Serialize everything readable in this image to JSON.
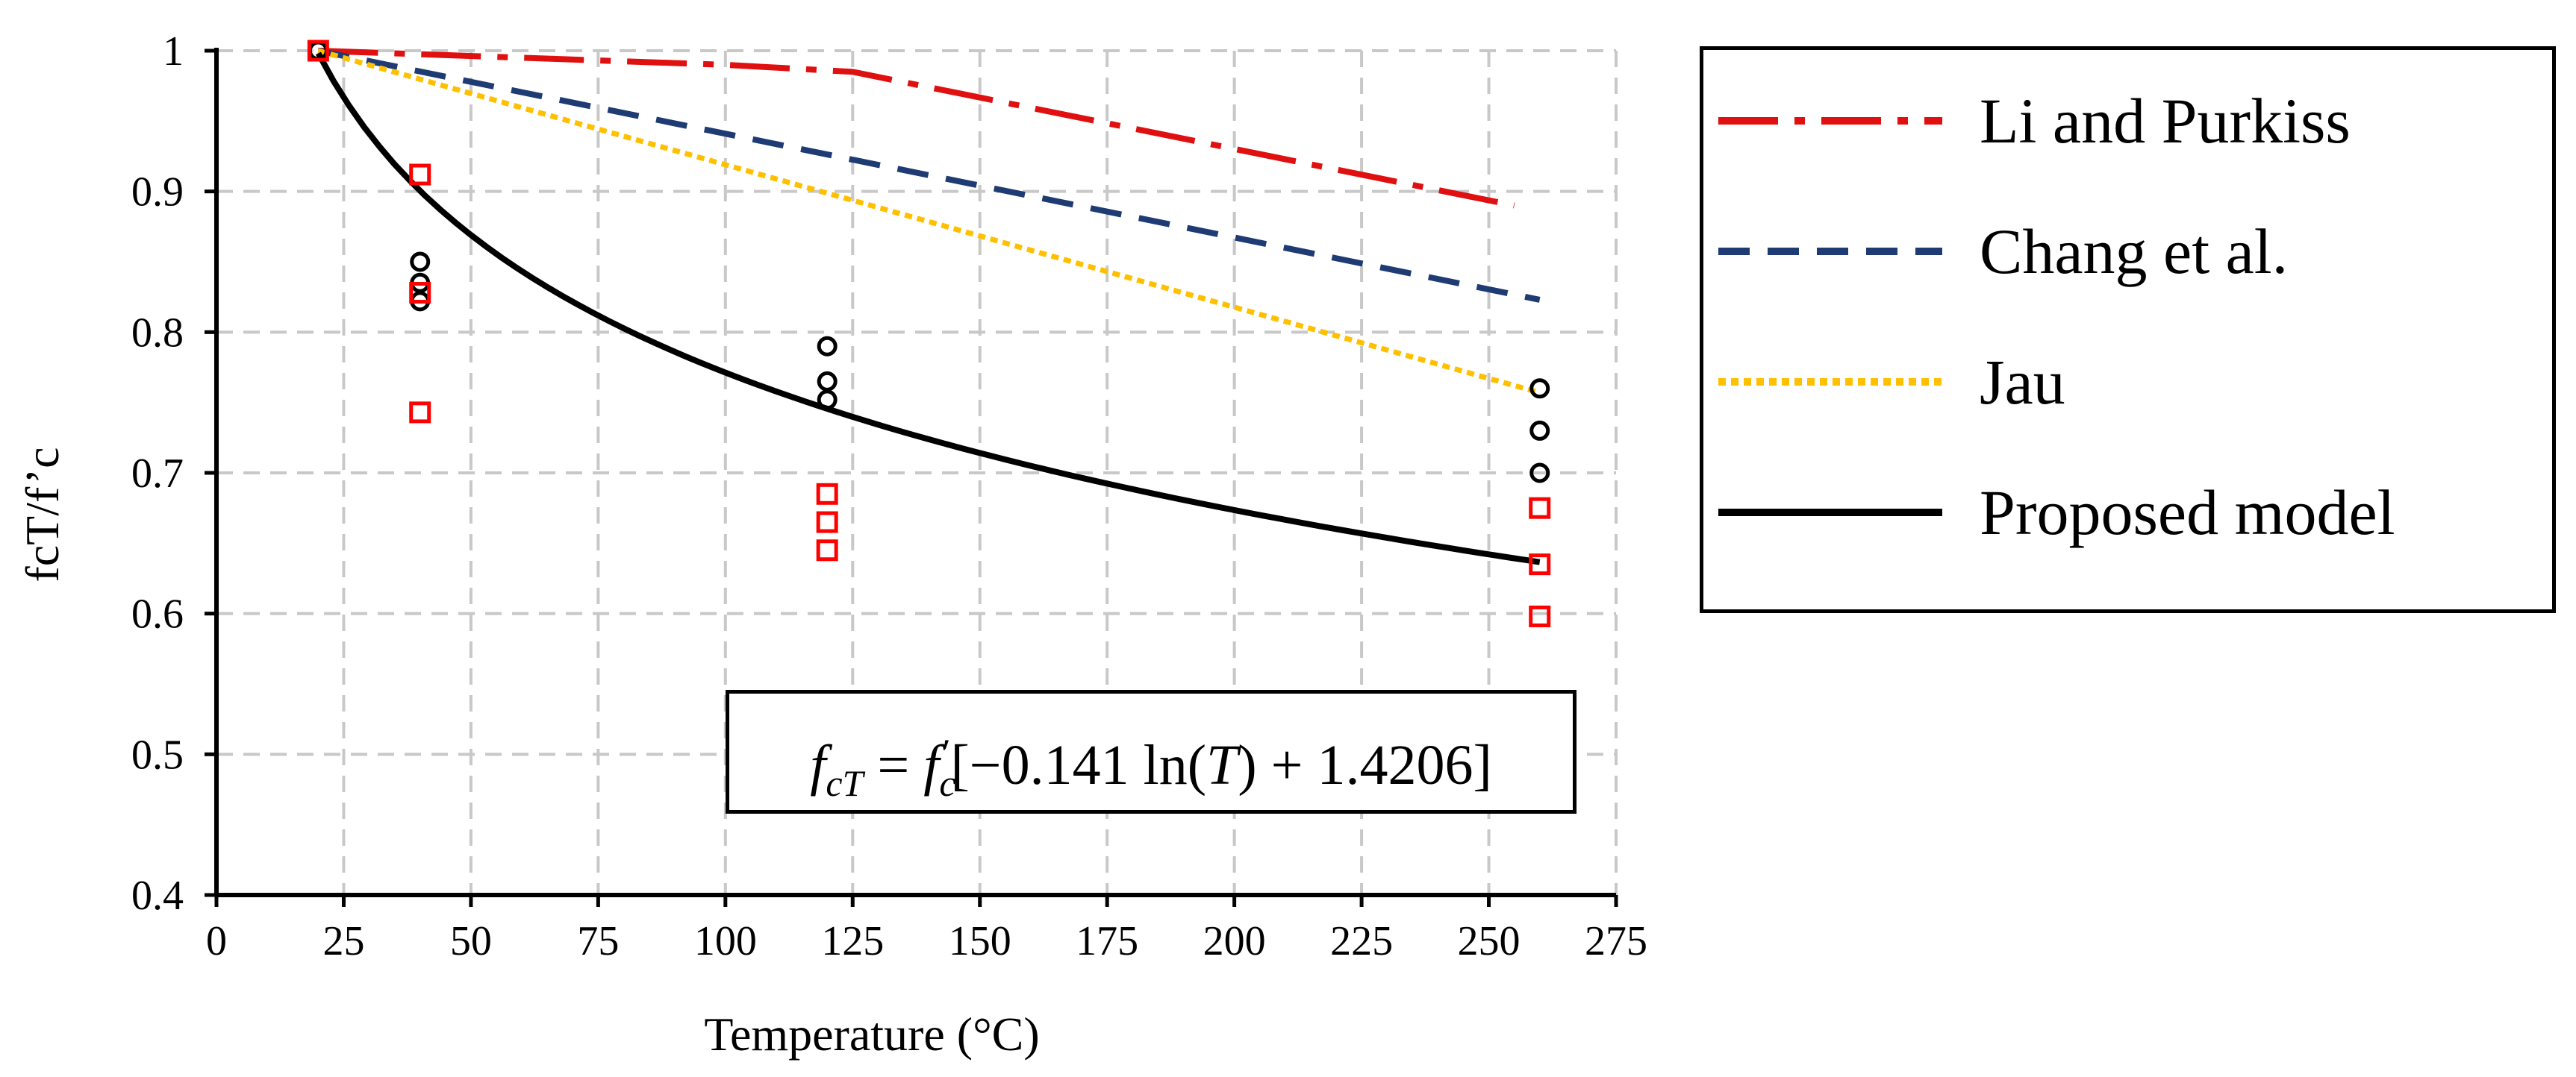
{
  "chart_data": {
    "type": "line",
    "title": "",
    "xlabel": "Temperature (°C)",
    "ylabel": "fcT/f’c",
    "xlim": [
      0,
      275
    ],
    "ylim": [
      0.4,
      1.0
    ],
    "xticks": [
      0,
      25,
      50,
      75,
      100,
      125,
      150,
      175,
      200,
      225,
      250,
      275
    ],
    "yticks": [
      "0.4",
      "0.5",
      "0.6",
      "0.7",
      "0.8",
      "0.9",
      "1"
    ],
    "grid": true,
    "legend_position": "right",
    "series": [
      {
        "name": "Li and Purkiss",
        "style": "dash-dot",
        "color": "#e01010",
        "x": [
          20,
          100,
          125,
          255
        ],
        "y": [
          1.0,
          0.99,
          0.985,
          0.89
        ]
      },
      {
        "name": "Chang et al.",
        "style": "dashed",
        "color": "#1f3b73",
        "x": [
          20,
          260
        ],
        "y": [
          1.0,
          0.823
        ]
      },
      {
        "name": "Jau",
        "style": "dotted",
        "color": "#ffc000",
        "x": [
          20,
          260
        ],
        "y": [
          1.0,
          0.757
        ]
      },
      {
        "name": "Proposed model",
        "style": "solid",
        "color": "#000000",
        "formula": "fcT = f'c[-0.141 ln(T) + 1.4206]",
        "x": [
          20,
          25,
          30,
          40,
          50,
          60,
          75,
          90,
          100,
          120,
          140,
          160,
          180,
          200,
          220,
          240,
          260
        ],
        "y": [
          1.0,
          0.9667,
          0.9359,
          0.8932,
          0.8627,
          0.8315,
          0.7989,
          0.7764,
          0.7727,
          0.745,
          0.7238,
          0.7056,
          0.6892,
          0.6745,
          0.6611,
          0.6488,
          0.6336
        ]
      }
    ],
    "scatter": [
      {
        "name": "circles",
        "marker": "circle",
        "color": "#000000",
        "points": [
          [
            20,
            1.0
          ],
          [
            40,
            0.85
          ],
          [
            40,
            0.835
          ],
          [
            40,
            0.822
          ],
          [
            120,
            0.79
          ],
          [
            120,
            0.765
          ],
          [
            120,
            0.752
          ],
          [
            260,
            0.76
          ],
          [
            260,
            0.73
          ],
          [
            260,
            0.7
          ]
        ]
      },
      {
        "name": "squares",
        "marker": "square",
        "color": "#ff0000",
        "points": [
          [
            20,
            1.0
          ],
          [
            40,
            0.912
          ],
          [
            40,
            0.828
          ],
          [
            40,
            0.743
          ],
          [
            120,
            0.685
          ],
          [
            120,
            0.665
          ],
          [
            120,
            0.645
          ],
          [
            260,
            0.675
          ],
          [
            260,
            0.635
          ],
          [
            260,
            0.598
          ]
        ]
      }
    ]
  },
  "legend": {
    "items": [
      {
        "label": "Li and Purkiss",
        "color": "#e01010"
      },
      {
        "label": "Chang et al.",
        "color": "#1f3b73"
      },
      {
        "label": "Jau",
        "color": "#ffc000"
      },
      {
        "label": "Proposed model",
        "color": "#000000"
      }
    ]
  },
  "formula": {
    "text": "fcT = f′c[−0.141 ln(T) + 1.4206]",
    "lhs": "f",
    "lhs_sub": "cT",
    "eq": " = ",
    "rhs_f": "f",
    "rhs_sub": "c",
    "rhs_sup": "′",
    "body_start": "[−0.141 ln(",
    "var": "T",
    "body_end": ") + 1.4206]"
  }
}
